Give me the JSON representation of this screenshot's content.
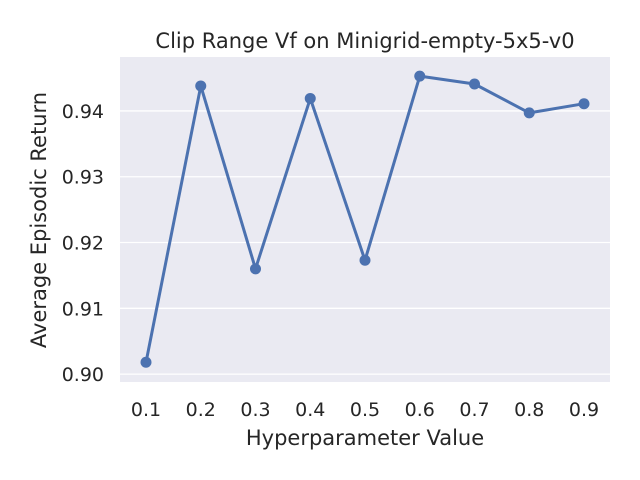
{
  "chart_data": {
    "type": "line",
    "title": "Clip Range Vf on Minigrid-empty-5x5-v0",
    "xlabel": "Hyperparameter Value",
    "ylabel": "Average Episodic Return",
    "categories": [
      "0.1",
      "0.2",
      "0.3",
      "0.4",
      "0.5",
      "0.6",
      "0.7",
      "0.8",
      "0.9"
    ],
    "series": [
      {
        "values": [
          0.9018,
          0.9438,
          0.916,
          0.9419,
          0.9173,
          0.9453,
          0.9441,
          0.9397,
          0.9411
        ]
      }
    ],
    "yticks": [
      "0.90",
      "0.91",
      "0.92",
      "0.93",
      "0.94"
    ],
    "ylim": [
      0.8988,
      0.9482
    ],
    "grid": true,
    "line_color": "#4c72b0",
    "background_color": "#eaeaf2",
    "grid_color": "#ffffff"
  }
}
